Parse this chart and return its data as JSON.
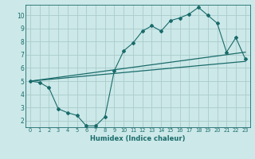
{
  "xlabel": "Humidex (Indice chaleur)",
  "ylabel": "",
  "background_color": "#cce8e8",
  "grid_color": "#aacccc",
  "line_color": "#1a6b6b",
  "xlim": [
    -0.5,
    23.5
  ],
  "ylim": [
    1.5,
    10.8
  ],
  "xticks": [
    0,
    1,
    2,
    3,
    4,
    5,
    6,
    7,
    8,
    9,
    10,
    11,
    12,
    13,
    14,
    15,
    16,
    17,
    18,
    19,
    20,
    21,
    22,
    23
  ],
  "yticks": [
    2,
    3,
    4,
    5,
    6,
    7,
    8,
    9,
    10
  ],
  "curve1_x": [
    0,
    1,
    2,
    3,
    4,
    5,
    6,
    7,
    8,
    9,
    10,
    11,
    12,
    13,
    14,
    15,
    16,
    17,
    18,
    19,
    20,
    21,
    22,
    23
  ],
  "curve1_y": [
    5.0,
    4.9,
    4.5,
    2.9,
    2.6,
    2.4,
    1.6,
    1.6,
    2.3,
    5.8,
    7.3,
    7.9,
    8.8,
    9.2,
    8.8,
    9.6,
    9.8,
    10.1,
    10.6,
    10.0,
    9.4,
    7.2,
    8.3,
    6.7
  ],
  "curve2_x": [
    0,
    23
  ],
  "curve2_y": [
    5.0,
    6.5
  ],
  "curve3_x": [
    0,
    23
  ],
  "curve3_y": [
    5.0,
    7.2
  ]
}
